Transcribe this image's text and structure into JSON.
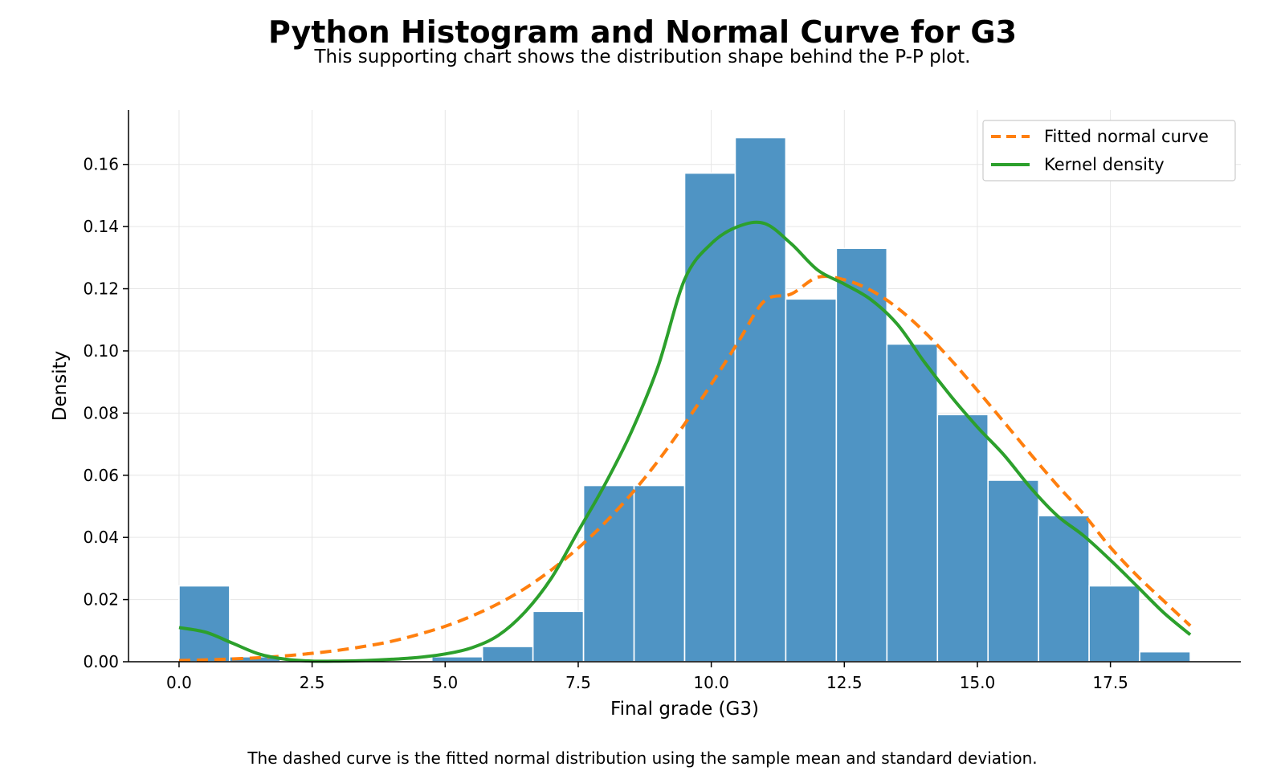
{
  "title": "Python Histogram and Normal Curve for G3",
  "subtitle": "This supporting chart shows the distribution shape behind the P-P plot.",
  "footnote": "The dashed curve is the fitted normal distribution using the sample mean and standard deviation.",
  "colors": {
    "bars": "#4f94c4",
    "bar_edge": "#ffffff",
    "normal_curve": "#ff7f0e",
    "kde": "#2ca02c",
    "grid": "#e6e6e6"
  },
  "chart_data": {
    "type": "bar",
    "title": "Python Histogram and Normal Curve for G3",
    "xlabel": "Final grade (G3)",
    "ylabel": "Density",
    "xlim": [
      -0.95,
      19.95
    ],
    "ylim": [
      0,
      0.1775
    ],
    "grid": true,
    "legend_position": "top-right",
    "x_ticks": [
      0.0,
      2.5,
      5.0,
      7.5,
      10.0,
      12.5,
      15.0,
      17.5
    ],
    "x_tick_labels": [
      "0.0",
      "2.5",
      "5.0",
      "7.5",
      "10.0",
      "12.5",
      "15.0",
      "17.5"
    ],
    "y_ticks": [
      0.0,
      0.02,
      0.04,
      0.06,
      0.08,
      0.1,
      0.12,
      0.14,
      0.16
    ],
    "y_tick_labels": [
      "0.00",
      "0.02",
      "0.04",
      "0.06",
      "0.08",
      "0.10",
      "0.12",
      "0.14",
      "0.16"
    ],
    "bin_edges": [
      0.0,
      0.95,
      1.9,
      2.85,
      3.8,
      4.75,
      5.7,
      6.65,
      7.6,
      8.55,
      9.5,
      10.45,
      11.4,
      12.35,
      13.3,
      14.25,
      15.2,
      16.15,
      17.1,
      18.05,
      19.0
    ],
    "values": [
      0.0244,
      0.0016,
      0.0,
      0.0,
      0.0,
      0.0016,
      0.0049,
      0.0162,
      0.0567,
      0.0567,
      0.1572,
      0.1686,
      0.1167,
      0.133,
      0.1022,
      0.0795,
      0.0584,
      0.047,
      0.0244,
      0.0032
    ],
    "series": [
      {
        "name": "Fitted normal curve",
        "style": "dashed",
        "x": [
          0.0,
          0.5,
          1.0,
          1.5,
          2.0,
          2.5,
          3.0,
          3.5,
          4.0,
          4.5,
          5.0,
          5.5,
          6.0,
          6.5,
          7.0,
          7.5,
          8.0,
          8.5,
          9.0,
          9.5,
          10.0,
          10.5,
          11.0,
          11.5,
          12.0,
          12.5,
          13.0,
          13.5,
          14.0,
          14.5,
          15.0,
          15.5,
          16.0,
          16.5,
          17.0,
          17.5,
          18.0,
          18.5,
          19.0
        ],
        "y": [
          0.0004,
          0.0006,
          0.0009,
          0.0013,
          0.0019,
          0.0027,
          0.0037,
          0.005,
          0.0066,
          0.0088,
          0.0114,
          0.0147,
          0.0187,
          0.0236,
          0.0296,
          0.0366,
          0.0447,
          0.054,
          0.0646,
          0.0765,
          0.0893,
          0.1027,
          0.1161,
          0.1183,
          0.1237,
          0.1229,
          0.1195,
          0.1138,
          0.1062,
          0.0972,
          0.0873,
          0.0771,
          0.0668,
          0.0568,
          0.0474,
          0.0368,
          0.0277,
          0.0196,
          0.0116
        ]
      },
      {
        "name": "Kernel density",
        "style": "solid",
        "x": [
          0.0,
          0.5,
          1.0,
          1.5,
          2.0,
          2.5,
          3.0,
          3.5,
          4.0,
          4.5,
          5.0,
          5.5,
          6.0,
          6.5,
          7.0,
          7.5,
          8.0,
          8.5,
          9.0,
          9.5,
          10.0,
          10.5,
          11.0,
          11.5,
          12.0,
          12.5,
          13.0,
          13.5,
          14.0,
          14.5,
          15.0,
          15.5,
          16.0,
          16.5,
          17.0,
          17.5,
          18.0,
          18.5,
          19.0
        ],
        "y": [
          0.011,
          0.0095,
          0.006,
          0.0025,
          0.0008,
          0.0002,
          0.0002,
          0.0004,
          0.0008,
          0.0014,
          0.0025,
          0.0045,
          0.0085,
          0.016,
          0.027,
          0.042,
          0.057,
          0.074,
          0.095,
          0.123,
          0.1345,
          0.14,
          0.141,
          0.1345,
          0.126,
          0.1215,
          0.1165,
          0.1085,
          0.0965,
          0.0855,
          0.0755,
          0.0665,
          0.056,
          0.047,
          0.0405,
          0.0327,
          0.0243,
          0.0158,
          0.0087
        ]
      }
    ]
  }
}
